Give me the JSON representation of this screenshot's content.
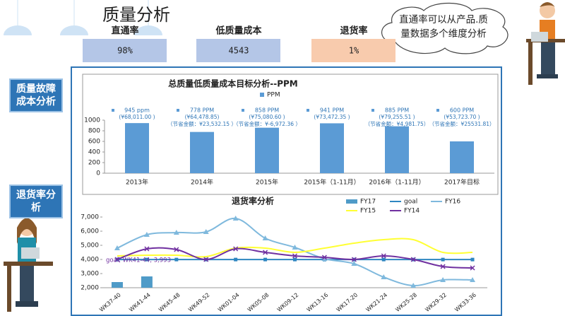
{
  "header": {
    "title": "质量分析",
    "bubble": [
      "直通率可以从产品.质量数据多个维度分析"
    ]
  },
  "kpis": [
    {
      "label": "直通率",
      "value": "98%"
    },
    {
      "label": "低质量成本",
      "value": "4543"
    },
    {
      "label": "退货率",
      "value": "1%"
    }
  ],
  "side_labels": [
    [
      "质量故障",
      "成本分析"
    ],
    [
      "退货率分",
      "析"
    ]
  ],
  "chart_data": [
    {
      "type": "bar",
      "title": "总质量低质量成本目标分析--PPM",
      "categories": [
        "2013年",
        "2014年",
        "2015年",
        "2015年（1-11月）",
        "2016年（1-11月）",
        "2017年目标"
      ],
      "series": [
        {
          "name": "PPM",
          "color": "#5b9bd5",
          "values": [
            945,
            778,
            858,
            941,
            885,
            600
          ],
          "value_labels": [
            "945 ppm",
            "778 PPM",
            "858 PPM",
            "941 PPM",
            "885 PPM",
            "600 PPM"
          ]
        }
      ],
      "notes": [
        [
          "(¥68,011.00 )"
        ],
        [
          "(¥64,478.85)",
          "（节省金额：¥23,532.15 ）"
        ],
        [
          "(¥75,080.60 )",
          "（节省金额：¥-6,972.36 ）"
        ],
        [
          "(¥73,472.35 )"
        ],
        [
          "(¥79,255.51 )",
          "（节省金额：¥4,981.75）"
        ],
        [
          "(¥53,723.70 )",
          "（节省金额：¥25531.81）"
        ]
      ],
      "ylim": [
        0,
        1000
      ],
      "yticks": [
        0,
        200,
        400,
        600,
        800,
        1000
      ]
    },
    {
      "type": "line",
      "title": "退货率分析",
      "categories": [
        "WK37-40",
        "WK41-44",
        "WK45-48",
        "WK49-52",
        "WK01-04",
        "WK05-08",
        "WK09-12",
        "WK13-16",
        "WK17-20",
        "WK21-24",
        "WK25-28",
        "WK29-32",
        "WK33-36"
      ],
      "series": [
        {
          "name": "FY17",
          "type": "bar",
          "color": "#4f9bc8",
          "values": [
            2400,
            2800,
            null,
            null,
            null,
            null,
            null,
            null,
            null,
            null,
            null,
            null,
            null
          ]
        },
        {
          "name": "goal",
          "color": "#2e86c1",
          "marker": "square",
          "values": [
            3993,
            3993,
            3993,
            3993,
            3993,
            3993,
            3993,
            3993,
            3993,
            3993,
            3993,
            3993,
            3993
          ]
        },
        {
          "name": "FY16",
          "color": "#7fb9dd",
          "marker": "triangle",
          "values": [
            4800,
            5750,
            5900,
            5950,
            6900,
            5500,
            4850,
            4050,
            3700,
            2750,
            2150,
            2550,
            2550
          ]
        },
        {
          "name": "FY15",
          "color": "#ffff33",
          "values": [
            4250,
            4300,
            4300,
            4200,
            4800,
            4800,
            4500,
            4800,
            5150,
            5400,
            5400,
            4500,
            4500
          ]
        },
        {
          "name": "FY14",
          "color": "#7030a0",
          "marker": "x",
          "values": [
            4000,
            4750,
            4700,
            4000,
            4750,
            4500,
            4250,
            4150,
            4000,
            4250,
            4000,
            3500,
            3400
          ]
        }
      ],
      "annotation": "goal, WK41-44, 3,993",
      "ylim": [
        2000,
        7000
      ],
      "yticks": [
        {
          "value": 2000,
          "label": "2,000"
        },
        {
          "value": 3000,
          "label": "3,000"
        },
        {
          "value": 4000,
          "label": "4,000"
        },
        {
          "value": 5000,
          "label": "5,000"
        },
        {
          "value": 6000,
          "label": "6,000"
        },
        {
          "value": 7000,
          "label": "7,000"
        }
      ]
    }
  ]
}
